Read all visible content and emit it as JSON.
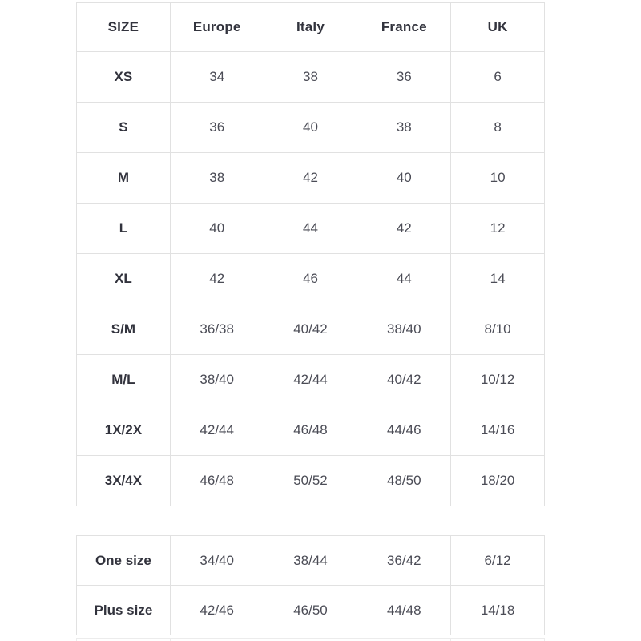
{
  "colors": {
    "border": "#e1e1e1",
    "header_text": "#32333d",
    "value_text": "#4b4c56",
    "background": "#ffffff"
  },
  "size_chart": {
    "headers": [
      "SIZE",
      "Europe",
      "Italy",
      "France",
      "UK"
    ],
    "rows": [
      {
        "size": "XS",
        "values": [
          "34",
          "38",
          "36",
          "6"
        ]
      },
      {
        "size": "S",
        "values": [
          "36",
          "40",
          "38",
          "8"
        ]
      },
      {
        "size": "M",
        "values": [
          "38",
          "42",
          "40",
          "10"
        ]
      },
      {
        "size": "L",
        "values": [
          "40",
          "44",
          "42",
          "12"
        ]
      },
      {
        "size": "XL",
        "values": [
          "42",
          "46",
          "44",
          "14"
        ]
      },
      {
        "size": "S/M",
        "values": [
          "36/38",
          "40/42",
          "38/40",
          "8/10"
        ]
      },
      {
        "size": "M/L",
        "values": [
          "38/40",
          "42/44",
          "40/42",
          "10/12"
        ]
      },
      {
        "size": "1X/2X",
        "values": [
          "42/44",
          "46/48",
          "44/46",
          "14/16"
        ]
      },
      {
        "size": "3X/4X",
        "values": [
          "46/48",
          "50/52",
          "48/50",
          "18/20"
        ]
      }
    ]
  },
  "extra_chart": {
    "rows": [
      {
        "size": "One size",
        "values": [
          "34/40",
          "38/44",
          "36/42",
          "6/12"
        ]
      },
      {
        "size": "Plus size",
        "values": [
          "42/46",
          "46/50",
          "44/48",
          "14/18"
        ]
      }
    ]
  }
}
